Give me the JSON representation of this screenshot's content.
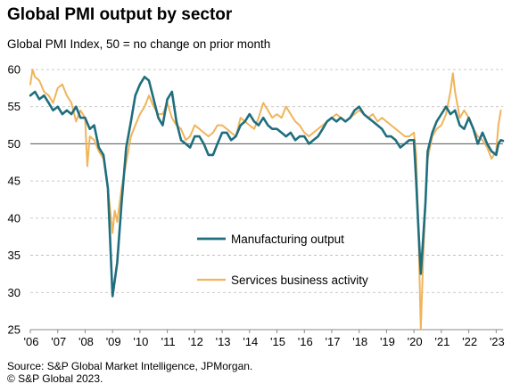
{
  "title": "Global PMI output by sector",
  "subtitle": "Global  PMI Index, 50 = no change on prior month",
  "source": "Source: S&P Global Market Intelligence, JPMorgan.",
  "copyright": "© S&P Global 2023.",
  "colors": {
    "manufacturing": "#1f6e7e",
    "services": "#f0b45a",
    "grid": "#b8b8b8",
    "axis": "#888888"
  },
  "chart_data": {
    "type": "line",
    "title": "Global PMI output by sector",
    "ylabel": "Global  PMI Index, 50 = no change on prior month",
    "xlim": [
      2006,
      2023.25
    ],
    "ylim": [
      25,
      60
    ],
    "yticks": [
      25,
      30,
      35,
      40,
      45,
      50,
      55,
      60
    ],
    "xtick_labels": [
      "'06",
      "'07",
      "'08",
      "'09",
      "'10",
      "'11",
      "'12",
      "'13",
      "'14",
      "'15",
      "'16",
      "'17",
      "'18",
      "'19",
      "'20",
      "'21",
      "'22",
      "'23"
    ],
    "grid": true,
    "legend": "center",
    "series": [
      {
        "name": "Manufacturing output",
        "color": "#1f6e7e",
        "points": [
          [
            2006.0,
            56.5
          ],
          [
            2006.17,
            57.0
          ],
          [
            2006.33,
            56.0
          ],
          [
            2006.5,
            56.5
          ],
          [
            2006.67,
            55.5
          ],
          [
            2006.83,
            54.5
          ],
          [
            2007.0,
            55.0
          ],
          [
            2007.17,
            54.0
          ],
          [
            2007.33,
            54.5
          ],
          [
            2007.5,
            54.0
          ],
          [
            2007.67,
            55.0
          ],
          [
            2007.83,
            53.5
          ],
          [
            2008.0,
            53.5
          ],
          [
            2008.17,
            52.0
          ],
          [
            2008.33,
            52.5
          ],
          [
            2008.5,
            49.5
          ],
          [
            2008.67,
            48.5
          ],
          [
            2008.83,
            44.0
          ],
          [
            2009.0,
            29.5
          ],
          [
            2009.17,
            34.0
          ],
          [
            2009.33,
            42.0
          ],
          [
            2009.5,
            49.5
          ],
          [
            2009.67,
            53.0
          ],
          [
            2009.83,
            56.5
          ],
          [
            2010.0,
            58.0
          ],
          [
            2010.17,
            59.0
          ],
          [
            2010.33,
            58.5
          ],
          [
            2010.5,
            56.0
          ],
          [
            2010.67,
            53.5
          ],
          [
            2010.83,
            52.5
          ],
          [
            2011.0,
            56.0
          ],
          [
            2011.17,
            57.0
          ],
          [
            2011.33,
            53.0
          ],
          [
            2011.5,
            50.5
          ],
          [
            2011.67,
            50.0
          ],
          [
            2011.83,
            49.5
          ],
          [
            2012.0,
            51.0
          ],
          [
            2012.17,
            51.0
          ],
          [
            2012.33,
            50.0
          ],
          [
            2012.5,
            48.5
          ],
          [
            2012.67,
            48.5
          ],
          [
            2012.83,
            50.0
          ],
          [
            2013.0,
            51.5
          ],
          [
            2013.17,
            51.5
          ],
          [
            2013.33,
            50.5
          ],
          [
            2013.5,
            51.0
          ],
          [
            2013.67,
            52.5
          ],
          [
            2013.83,
            53.0
          ],
          [
            2014.0,
            54.0
          ],
          [
            2014.17,
            53.0
          ],
          [
            2014.33,
            52.5
          ],
          [
            2014.5,
            53.5
          ],
          [
            2014.67,
            52.5
          ],
          [
            2014.83,
            52.0
          ],
          [
            2015.0,
            52.0
          ],
          [
            2015.17,
            51.5
          ],
          [
            2015.33,
            51.0
          ],
          [
            2015.5,
            51.5
          ],
          [
            2015.67,
            50.5
          ],
          [
            2015.83,
            51.0
          ],
          [
            2016.0,
            51.0
          ],
          [
            2016.17,
            50.0
          ],
          [
            2016.33,
            50.5
          ],
          [
            2016.5,
            51.0
          ],
          [
            2016.67,
            52.0
          ],
          [
            2016.83,
            53.0
          ],
          [
            2017.0,
            53.5
          ],
          [
            2017.17,
            53.0
          ],
          [
            2017.33,
            53.5
          ],
          [
            2017.5,
            53.0
          ],
          [
            2017.67,
            53.5
          ],
          [
            2017.83,
            54.5
          ],
          [
            2018.0,
            55.0
          ],
          [
            2018.17,
            54.0
          ],
          [
            2018.33,
            53.5
          ],
          [
            2018.5,
            53.0
          ],
          [
            2018.67,
            52.5
          ],
          [
            2018.83,
            52.0
          ],
          [
            2019.0,
            51.0
          ],
          [
            2019.17,
            51.0
          ],
          [
            2019.33,
            50.5
          ],
          [
            2019.5,
            49.5
          ],
          [
            2019.67,
            50.0
          ],
          [
            2019.83,
            50.5
          ],
          [
            2020.0,
            50.5
          ],
          [
            2020.08,
            45.0
          ],
          [
            2020.17,
            38.0
          ],
          [
            2020.25,
            32.5
          ],
          [
            2020.33,
            37.0
          ],
          [
            2020.42,
            42.0
          ],
          [
            2020.5,
            49.0
          ],
          [
            2020.67,
            51.5
          ],
          [
            2020.83,
            53.0
          ],
          [
            2021.0,
            54.0
          ],
          [
            2021.17,
            55.0
          ],
          [
            2021.33,
            54.0
          ],
          [
            2021.5,
            54.5
          ],
          [
            2021.67,
            52.5
          ],
          [
            2021.83,
            52.0
          ],
          [
            2022.0,
            53.5
          ],
          [
            2022.17,
            52.0
          ],
          [
            2022.33,
            50.0
          ],
          [
            2022.5,
            51.5
          ],
          [
            2022.67,
            50.0
          ],
          [
            2022.83,
            49.0
          ],
          [
            2023.0,
            48.5
          ],
          [
            2023.08,
            50.0
          ],
          [
            2023.17,
            50.5
          ],
          [
            2023.25,
            50.4
          ]
        ]
      },
      {
        "name": "Services business activity",
        "color": "#f0b45a",
        "points": [
          [
            2006.0,
            58.0
          ],
          [
            2006.08,
            60.0
          ],
          [
            2006.17,
            59.0
          ],
          [
            2006.33,
            58.5
          ],
          [
            2006.5,
            57.0
          ],
          [
            2006.67,
            56.5
          ],
          [
            2006.83,
            55.5
          ],
          [
            2007.0,
            57.5
          ],
          [
            2007.17,
            58.0
          ],
          [
            2007.33,
            56.5
          ],
          [
            2007.5,
            55.5
          ],
          [
            2007.67,
            53.0
          ],
          [
            2007.83,
            54.5
          ],
          [
            2008.0,
            53.5
          ],
          [
            2008.08,
            47.0
          ],
          [
            2008.17,
            51.0
          ],
          [
            2008.33,
            50.5
          ],
          [
            2008.5,
            49.0
          ],
          [
            2008.67,
            48.0
          ],
          [
            2008.83,
            44.0
          ],
          [
            2009.0,
            38.0
          ],
          [
            2009.08,
            41.0
          ],
          [
            2009.17,
            39.5
          ],
          [
            2009.33,
            44.0
          ],
          [
            2009.5,
            47.5
          ],
          [
            2009.67,
            51.0
          ],
          [
            2009.83,
            52.5
          ],
          [
            2010.0,
            54.0
          ],
          [
            2010.17,
            55.0
          ],
          [
            2010.33,
            56.5
          ],
          [
            2010.5,
            55.0
          ],
          [
            2010.67,
            54.0
          ],
          [
            2010.83,
            54.0
          ],
          [
            2011.0,
            55.5
          ],
          [
            2011.17,
            53.5
          ],
          [
            2011.33,
            52.5
          ],
          [
            2011.5,
            52.0
          ],
          [
            2011.67,
            50.5
          ],
          [
            2011.83,
            51.0
          ],
          [
            2012.0,
            52.5
          ],
          [
            2012.17,
            52.0
          ],
          [
            2012.33,
            51.5
          ],
          [
            2012.5,
            51.0
          ],
          [
            2012.67,
            51.5
          ],
          [
            2012.83,
            52.5
          ],
          [
            2013.0,
            52.5
          ],
          [
            2013.17,
            52.0
          ],
          [
            2013.33,
            51.5
          ],
          [
            2013.5,
            51.0
          ],
          [
            2013.67,
            53.5
          ],
          [
            2013.83,
            53.0
          ],
          [
            2014.0,
            52.5
          ],
          [
            2014.17,
            52.0
          ],
          [
            2014.33,
            53.5
          ],
          [
            2014.5,
            55.5
          ],
          [
            2014.67,
            54.5
          ],
          [
            2014.83,
            53.5
          ],
          [
            2015.0,
            54.0
          ],
          [
            2015.17,
            53.5
          ],
          [
            2015.33,
            55.0
          ],
          [
            2015.5,
            54.0
          ],
          [
            2015.67,
            53.0
          ],
          [
            2015.83,
            52.5
          ],
          [
            2016.0,
            51.5
          ],
          [
            2016.17,
            51.0
          ],
          [
            2016.33,
            51.5
          ],
          [
            2016.5,
            52.0
          ],
          [
            2016.67,
            52.5
          ],
          [
            2016.83,
            53.0
          ],
          [
            2017.0,
            53.5
          ],
          [
            2017.17,
            54.0
          ],
          [
            2017.33,
            53.5
          ],
          [
            2017.5,
            53.0
          ],
          [
            2017.67,
            53.5
          ],
          [
            2017.83,
            54.0
          ],
          [
            2018.0,
            54.5
          ],
          [
            2018.17,
            54.0
          ],
          [
            2018.33,
            53.5
          ],
          [
            2018.5,
            54.0
          ],
          [
            2018.67,
            53.0
          ],
          [
            2018.83,
            53.5
          ],
          [
            2019.0,
            53.0
          ],
          [
            2019.17,
            52.5
          ],
          [
            2019.33,
            52.0
          ],
          [
            2019.5,
            51.5
          ],
          [
            2019.67,
            51.0
          ],
          [
            2019.83,
            51.0
          ],
          [
            2020.0,
            51.5
          ],
          [
            2020.08,
            48.5
          ],
          [
            2020.17,
            37.0
          ],
          [
            2020.25,
            25.0
          ],
          [
            2020.33,
            34.0
          ],
          [
            2020.42,
            42.0
          ],
          [
            2020.5,
            48.0
          ],
          [
            2020.67,
            51.0
          ],
          [
            2020.83,
            52.0
          ],
          [
            2021.0,
            52.5
          ],
          [
            2021.17,
            54.0
          ],
          [
            2021.33,
            57.0
          ],
          [
            2021.42,
            59.5
          ],
          [
            2021.5,
            57.0
          ],
          [
            2021.67,
            53.5
          ],
          [
            2021.83,
            54.5
          ],
          [
            2022.0,
            53.5
          ],
          [
            2022.17,
            52.0
          ],
          [
            2022.33,
            51.0
          ],
          [
            2022.5,
            50.5
          ],
          [
            2022.67,
            49.5
          ],
          [
            2022.83,
            48.0
          ],
          [
            2023.0,
            49.0
          ],
          [
            2023.08,
            52.5
          ],
          [
            2023.17,
            54.5
          ]
        ]
      }
    ]
  }
}
